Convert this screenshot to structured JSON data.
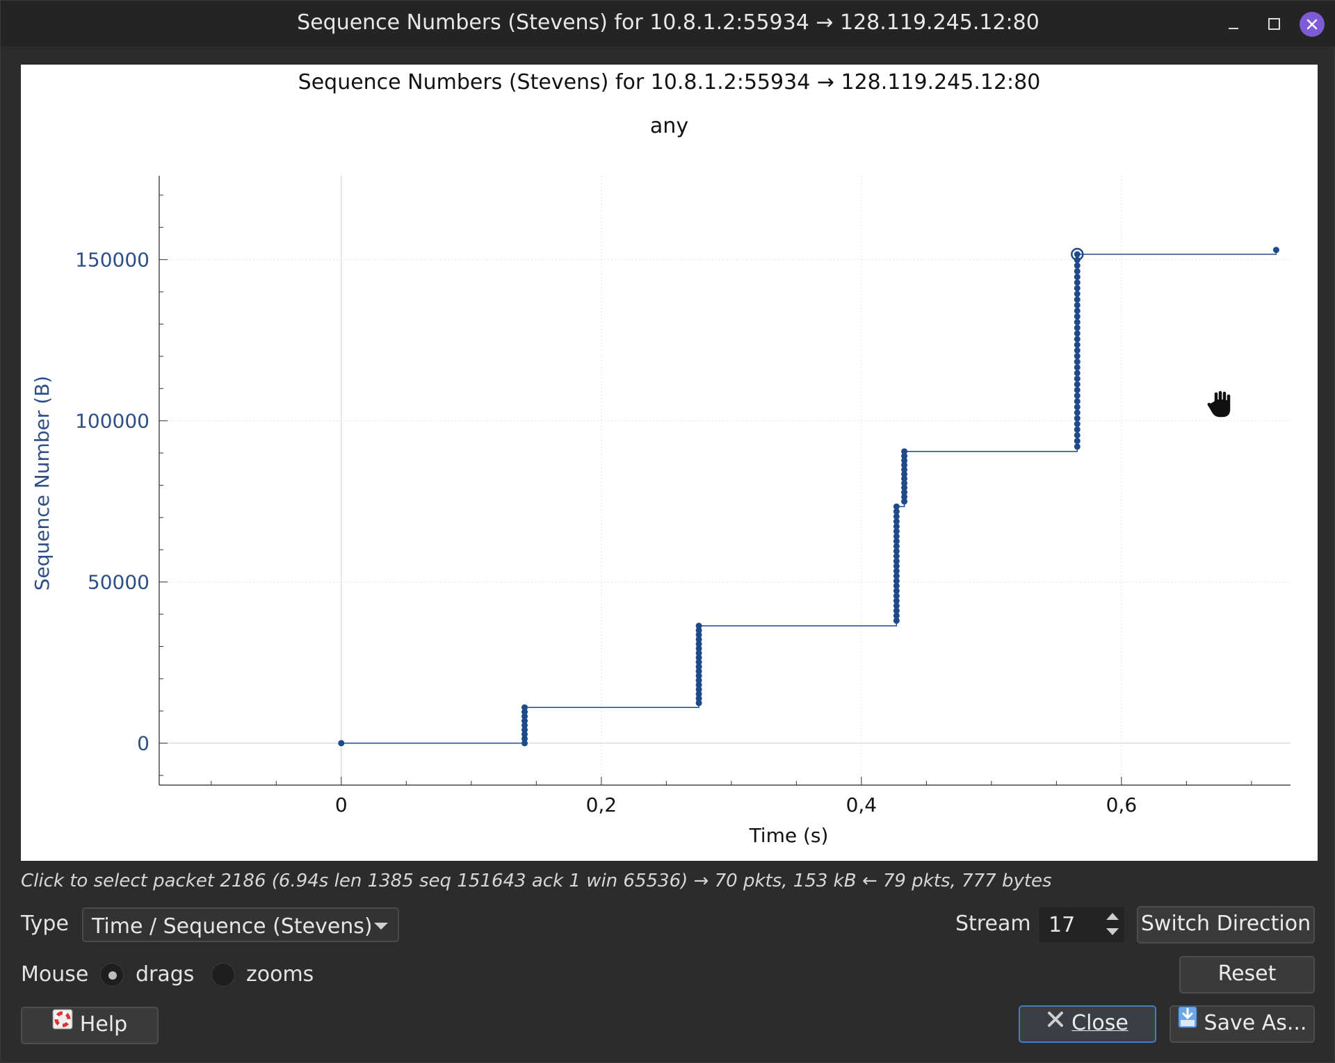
{
  "window": {
    "title": "Sequence Numbers (Stevens) for 10.8.1.2:55934 → 128.119.245.12:80"
  },
  "plot": {
    "title": "Sequence Numbers (Stevens) for 10.8.1.2:55934 → 128.119.245.12:80",
    "subtitle": "any"
  },
  "chart_data": {
    "type": "scatter",
    "title": "Sequence Numbers (Stevens) for 10.8.1.2:55934 → 128.119.245.12:80",
    "subtitle": "any",
    "xlabel": "Time (s)",
    "ylabel": "Sequence Number (B)",
    "xlim": [
      -0.14,
      0.73
    ],
    "ylim": [
      -13000,
      176000
    ],
    "x_ticks": [
      "0",
      "0,2",
      "0,4",
      "0,6"
    ],
    "x_tick_values": [
      0,
      0.2,
      0.4,
      0.6
    ],
    "y_ticks": [
      "0",
      "50000",
      "100000",
      "150000"
    ],
    "y_tick_values": [
      0,
      50000,
      100000,
      150000
    ],
    "grid": true,
    "series_color": "#1f4a8a",
    "step_line": true,
    "selected_point": {
      "x": 0.566,
      "y": 151643
    },
    "clusters": [
      {
        "x": 0.0,
        "y_start": 0,
        "y_end": 0,
        "count": 1
      },
      {
        "x": 0.141,
        "y_start": 0,
        "y_end": 11080,
        "count": 9
      },
      {
        "x": 0.275,
        "y_start": 12464,
        "y_end": 36394,
        "count": 18
      },
      {
        "x": 0.427,
        "y_start": 38000,
        "y_end": 73400,
        "count": 24
      },
      {
        "x": 0.433,
        "y_start": 75000,
        "y_end": 90500,
        "count": 12
      },
      {
        "x": 0.566,
        "y_start": 92000,
        "y_end": 151643,
        "count": 35
      },
      {
        "x": 0.719,
        "y_start": 153000,
        "y_end": 153000,
        "count": 1
      }
    ]
  },
  "hint": "Click to select packet 2186 (6.94s len 1385 seq 151643 ack 1 win 65536) → 70 pkts, 153 kB ← 79 pkts, 777 bytes",
  "controls": {
    "type_label": "Type",
    "type_value": "Time / Sequence (Stevens)",
    "stream_label": "Stream",
    "stream_value": "17",
    "switch_direction": "Switch Direction",
    "mouse_label": "Mouse",
    "drags": "drags",
    "zooms": "zooms",
    "reset": "Reset",
    "help": "Help",
    "close": "Close",
    "save_as": "Save As..."
  }
}
